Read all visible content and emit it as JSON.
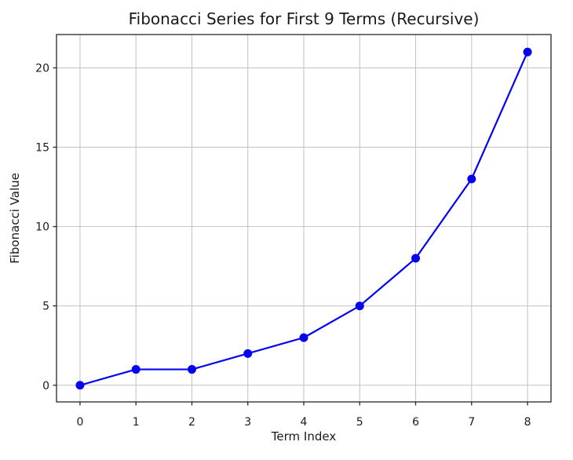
{
  "chart_data": {
    "type": "line",
    "title": "Fibonacci Series for First 9 Terms (Recursive)",
    "xlabel": "Term Index",
    "ylabel": "Fibonacci Value",
    "x": [
      0,
      1,
      2,
      3,
      4,
      5,
      6,
      7,
      8
    ],
    "y": [
      0,
      1,
      1,
      2,
      3,
      5,
      8,
      13,
      21
    ],
    "xticks": [
      0,
      1,
      2,
      3,
      4,
      5,
      6,
      7,
      8
    ],
    "yticks": [
      0,
      5,
      10,
      15,
      20
    ],
    "xlim": [
      -0.42,
      8.42
    ],
    "ylim": [
      -1.05,
      22.1
    ],
    "grid": true,
    "legend": false,
    "marker": "circle",
    "colors": {
      "line": "#0404ee",
      "marker": "#0404ee",
      "grid": "#c2c2c2",
      "spine": "#262626",
      "text": "#1a1a1a",
      "background": "#ffffff"
    }
  }
}
